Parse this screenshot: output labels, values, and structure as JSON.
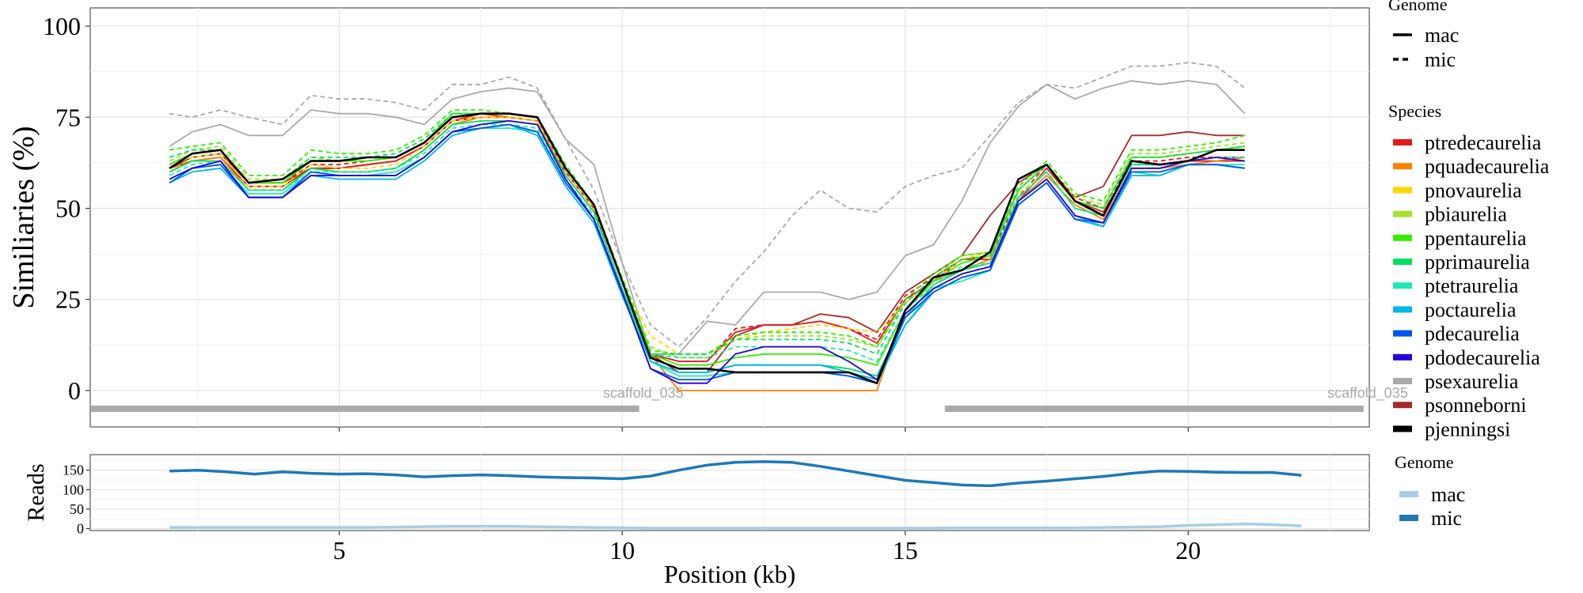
{
  "chart_data": [
    {
      "type": "line",
      "title": "",
      "xlabel": "Position (kb)",
      "ylabel": "Similiaries (%)",
      "xlim": [
        0.6,
        23.2
      ],
      "ylim": [
        -10,
        105
      ],
      "xticks": [
        "5",
        "10",
        "15",
        "20"
      ],
      "yticks": [
        "0",
        "25",
        "50",
        "75",
        "100"
      ],
      "xtick_values": [
        5,
        10,
        15,
        20
      ],
      "ytick_values": [
        0,
        25,
        50,
        75,
        100
      ],
      "x": [
        2.0,
        2.4,
        2.9,
        3.4,
        4.0,
        4.5,
        5.0,
        5.5,
        6.0,
        6.5,
        7.0,
        7.5,
        8.0,
        8.5,
        9.0,
        9.5,
        10.0,
        10.5,
        11.0,
        11.5,
        12.0,
        12.5,
        13.0,
        13.5,
        14.0,
        14.5,
        15.0,
        15.5,
        16.0,
        16.5,
        17.0,
        17.5,
        18.0,
        18.5,
        19.0,
        19.5,
        20.0,
        20.5,
        21.0
      ],
      "legend_genome": {
        "title": "Genome",
        "entries": [
          "mac",
          "mic"
        ]
      },
      "legend_species": {
        "title": "Species",
        "entries": [
          {
            "name": "ptredecaurelia",
            "color": "#e41a1c"
          },
          {
            "name": "pquadecaurelia",
            "color": "#ff7f00"
          },
          {
            "name": "pnovaurelia",
            "color": "#ffd700"
          },
          {
            "name": "pbiaurelia",
            "color": "#a6e22e"
          },
          {
            "name": "ppentaurelia",
            "color": "#33ee00"
          },
          {
            "name": "pprimaurelia",
            "color": "#00e060"
          },
          {
            "name": "ptetraurelia",
            "color": "#1de9b6"
          },
          {
            "name": "poctaurelia",
            "color": "#00b8e6"
          },
          {
            "name": "pdecaurelia",
            "color": "#0055ee"
          },
          {
            "name": "pdodecaurelia",
            "color": "#2200dd"
          },
          {
            "name": "psexaurelia",
            "color": "#a9a9a9"
          },
          {
            "name": "psonneborni",
            "color": "#a52a2a"
          },
          {
            "name": "pjenningsi",
            "color": "#000000"
          }
        ]
      },
      "series": [
        {
          "name": "psexaurelia",
          "genome": "mic",
          "color": "#a9a9a9",
          "values": [
            76,
            75,
            77,
            75,
            73,
            81,
            80,
            80,
            79,
            77,
            84,
            84,
            86,
            83,
            69,
            55,
            35,
            18,
            12,
            20,
            30,
            38,
            48,
            55,
            50,
            49,
            56,
            59,
            61,
            70,
            79,
            84,
            83,
            86,
            89,
            89,
            90,
            89,
            83
          ]
        },
        {
          "name": "psexaurelia",
          "genome": "mac",
          "color": "#a9a9a9",
          "values": [
            67,
            71,
            73,
            70,
            70,
            77,
            76,
            76,
            75,
            73,
            80,
            82,
            83,
            82,
            69,
            62,
            35,
            10,
            10,
            19,
            18,
            27,
            27,
            27,
            25,
            27,
            37,
            40,
            52,
            68,
            78,
            84,
            80,
            83,
            85,
            84,
            85,
            84,
            76
          ]
        },
        {
          "name": "psonneborni",
          "genome": "mac",
          "color": "#a52a2a",
          "values": [
            61,
            64,
            65,
            57,
            57,
            61,
            61,
            62,
            63,
            67,
            74,
            75,
            75,
            74,
            60,
            50,
            30,
            10,
            5,
            5,
            15,
            18,
            18,
            21,
            20,
            16,
            27,
            32,
            37,
            48,
            57,
            62,
            53,
            56,
            70,
            70,
            71,
            70,
            70
          ]
        },
        {
          "name": "ptredecaurelia",
          "genome": "mac",
          "color": "#e41a1c",
          "values": [
            61,
            63,
            64,
            56,
            56,
            61,
            61,
            62,
            63,
            67,
            74,
            76,
            75,
            74,
            60,
            50,
            30,
            10,
            8,
            8,
            16,
            18,
            18,
            19,
            17,
            13,
            25,
            30,
            36,
            36,
            52,
            61,
            52,
            49,
            62,
            62,
            63,
            63,
            63
          ]
        },
        {
          "name": "ptredecaurelia",
          "genome": "mic",
          "color": "#e41a1c",
          "values": [
            62,
            65,
            66,
            57,
            57,
            62,
            62,
            63,
            64,
            68,
            75,
            76,
            76,
            75,
            60,
            50,
            30,
            10,
            8,
            8,
            17,
            18,
            18,
            19,
            17,
            14,
            26,
            31,
            36,
            37,
            53,
            62,
            53,
            50,
            63,
            63,
            64,
            64,
            64
          ]
        },
        {
          "name": "pquadecaurelia",
          "genome": "mac",
          "color": "#ff7f00",
          "values": [
            60,
            63,
            64,
            55,
            55,
            61,
            60,
            60,
            61,
            66,
            73,
            75,
            75,
            74,
            59,
            49,
            28,
            10,
            0,
            0,
            0,
            0,
            0,
            0,
            0,
            0,
            22,
            30,
            33,
            36,
            52,
            59,
            51,
            47,
            61,
            61,
            62,
            63,
            64
          ]
        },
        {
          "name": "pnovaurelia",
          "genome": "mic",
          "color": "#ffd700",
          "values": [
            60,
            64,
            65,
            56,
            56,
            62,
            61,
            61,
            62,
            67,
            74,
            75,
            75,
            74,
            60,
            50,
            30,
            15,
            10,
            10,
            14,
            16,
            17,
            18,
            17,
            16,
            24,
            30,
            36,
            38,
            54,
            60,
            52,
            50,
            64,
            64,
            65,
            66,
            67
          ]
        },
        {
          "name": "pbiaurelia",
          "genome": "mic",
          "color": "#a6e22e",
          "values": [
            63,
            66,
            67,
            58,
            58,
            64,
            63,
            63,
            64,
            68,
            75,
            76,
            76,
            75,
            61,
            51,
            31,
            12,
            9,
            9,
            14,
            15,
            15,
            15,
            14,
            12,
            24,
            31,
            37,
            38,
            55,
            62,
            53,
            51,
            65,
            65,
            66,
            67,
            68
          ]
        },
        {
          "name": "ppentaurelia",
          "genome": "mic",
          "color": "#33ee00",
          "values": [
            66,
            67,
            68,
            59,
            59,
            66,
            65,
            65,
            66,
            70,
            77,
            77,
            76,
            75,
            62,
            51,
            31,
            11,
            10,
            10,
            15,
            16,
            16,
            16,
            15,
            12,
            25,
            32,
            37,
            38,
            56,
            63,
            54,
            52,
            66,
            66,
            67,
            68,
            70
          ]
        },
        {
          "name": "ppentaurelia",
          "genome": "mac",
          "color": "#33ee00",
          "values": [
            62,
            65,
            66,
            57,
            57,
            63,
            63,
            63,
            64,
            68,
            76,
            76,
            76,
            75,
            61,
            51,
            30,
            10,
            7,
            7,
            9,
            10,
            10,
            10,
            9,
            7,
            22,
            30,
            35,
            37,
            55,
            62,
            52,
            50,
            64,
            64,
            65,
            66,
            67
          ]
        },
        {
          "name": "pprimaurelia",
          "genome": "mic",
          "color": "#00e060",
          "values": [
            64,
            66,
            66,
            57,
            58,
            64,
            64,
            64,
            65,
            69,
            76,
            76,
            76,
            75,
            61,
            51,
            30,
            10,
            10,
            10,
            14,
            14,
            14,
            14,
            13,
            10,
            24,
            31,
            36,
            37,
            55,
            62,
            52,
            50,
            64,
            64,
            65,
            66,
            67
          ]
        },
        {
          "name": "pprimaurelia",
          "genome": "mac",
          "color": "#00e060",
          "values": [
            60,
            63,
            63,
            55,
            55,
            61,
            60,
            60,
            61,
            66,
            73,
            74,
            74,
            73,
            59,
            49,
            28,
            8,
            5,
            5,
            7,
            7,
            7,
            7,
            6,
            4,
            20,
            29,
            33,
            35,
            53,
            60,
            50,
            48,
            62,
            62,
            63,
            64,
            63
          ]
        },
        {
          "name": "ptetraurelia",
          "genome": "mic",
          "color": "#1de9b6",
          "values": [
            59,
            62,
            63,
            55,
            55,
            60,
            60,
            60,
            61,
            65,
            72,
            73,
            73,
            72,
            58,
            48,
            28,
            10,
            9,
            9,
            12,
            12,
            12,
            12,
            11,
            8,
            22,
            29,
            34,
            35,
            53,
            60,
            50,
            48,
            62,
            62,
            63,
            64,
            64
          ]
        },
        {
          "name": "ptetraurelia",
          "genome": "mac",
          "color": "#1de9b6",
          "values": [
            58,
            61,
            62,
            54,
            54,
            60,
            59,
            59,
            60,
            64,
            71,
            72,
            72,
            71,
            57,
            47,
            27,
            8,
            4,
            4,
            5,
            5,
            5,
            5,
            4,
            2,
            18,
            28,
            30,
            33,
            52,
            58,
            48,
            45,
            60,
            59,
            62,
            62,
            62
          ]
        },
        {
          "name": "poctaurelia",
          "genome": "mac",
          "color": "#00b8e6",
          "values": [
            57,
            60,
            61,
            53,
            53,
            59,
            58,
            58,
            58,
            63,
            70,
            72,
            73,
            70,
            56,
            46,
            26,
            8,
            5,
            5,
            7,
            7,
            7,
            7,
            5,
            3,
            18,
            27,
            31,
            33,
            51,
            57,
            47,
            45,
            59,
            59,
            62,
            62,
            61
          ]
        },
        {
          "name": "pdecaurelia",
          "genome": "mac",
          "color": "#0055ee",
          "values": [
            57,
            61,
            62,
            53,
            53,
            60,
            59,
            59,
            59,
            64,
            71,
            72,
            73,
            71,
            57,
            47,
            27,
            6,
            3,
            3,
            5,
            5,
            5,
            5,
            4,
            2,
            20,
            27,
            31,
            33,
            51,
            57,
            47,
            46,
            60,
            60,
            62,
            62,
            61
          ]
        },
        {
          "name": "pdodecaurelia",
          "genome": "mac",
          "color": "#2200dd",
          "values": [
            58,
            61,
            63,
            53,
            53,
            59,
            59,
            59,
            59,
            64,
            71,
            73,
            74,
            73,
            58,
            47,
            27,
            6,
            2,
            2,
            10,
            12,
            12,
            12,
            8,
            3,
            21,
            28,
            32,
            34,
            52,
            58,
            48,
            46,
            61,
            61,
            63,
            64,
            63
          ]
        },
        {
          "name": "pjenningsi",
          "genome": "mac",
          "color": "#000000",
          "values": [
            61,
            65,
            66,
            57,
            58,
            63,
            63,
            64,
            64,
            68,
            75,
            76,
            76,
            75,
            61,
            51,
            30,
            9,
            6,
            6,
            5,
            5,
            5,
            5,
            5,
            2,
            22,
            31,
            33,
            38,
            58,
            62,
            52,
            48,
            63,
            62,
            63,
            66,
            66
          ]
        }
      ],
      "annotations": [
        {
          "text": "scaffold_035",
          "bar_start_kb": 0.6,
          "bar_end_kb": 10.3
        },
        {
          "text": "scaffold_035",
          "bar_start_kb": 15.7,
          "bar_end_kb": 23.1
        }
      ]
    },
    {
      "type": "line",
      "title": "",
      "xlabel": "Position (kb)",
      "ylabel": "Reads",
      "xlim": [
        0.6,
        23.2
      ],
      "ylim": [
        -5,
        190
      ],
      "xticks": [
        "5",
        "10",
        "15",
        "20"
      ],
      "yticks": [
        "0",
        "50",
        "100",
        "150"
      ],
      "xtick_values": [
        5,
        10,
        15,
        20
      ],
      "ytick_values": [
        0,
        50,
        100,
        150
      ],
      "x": [
        2.0,
        2.5,
        3.0,
        3.5,
        4.0,
        4.5,
        5.0,
        5.5,
        6.0,
        6.5,
        7.0,
        7.5,
        8.0,
        8.5,
        9.0,
        9.5,
        10.0,
        10.5,
        11.0,
        11.5,
        12.0,
        12.5,
        13.0,
        13.5,
        14.0,
        14.5,
        15.0,
        15.5,
        16.0,
        16.5,
        17.0,
        17.5,
        18.0,
        18.5,
        19.0,
        19.5,
        20.0,
        20.5,
        21.0,
        21.5,
        22.0
      ],
      "legend": {
        "title": "Genome",
        "entries": [
          "mac",
          "mic"
        ]
      },
      "series": [
        {
          "name": "mac",
          "color": "#a6cee3",
          "values": [
            3,
            3,
            3,
            3,
            3,
            3,
            3,
            3,
            4,
            5,
            6,
            6,
            6,
            5,
            4,
            3,
            2,
            1,
            1,
            1,
            1,
            1,
            1,
            1,
            1,
            1,
            1,
            1,
            2,
            2,
            2,
            2,
            2,
            3,
            4,
            5,
            8,
            10,
            12,
            10,
            7
          ]
        },
        {
          "name": "mic",
          "color": "#1f78b4",
          "values": [
            148,
            150,
            146,
            140,
            146,
            142,
            140,
            141,
            138,
            133,
            136,
            138,
            136,
            133,
            131,
            130,
            128,
            135,
            150,
            163,
            170,
            172,
            170,
            160,
            148,
            136,
            124,
            118,
            112,
            110,
            117,
            122,
            128,
            134,
            142,
            148,
            147,
            145,
            144,
            144,
            137
          ]
        }
      ]
    }
  ]
}
